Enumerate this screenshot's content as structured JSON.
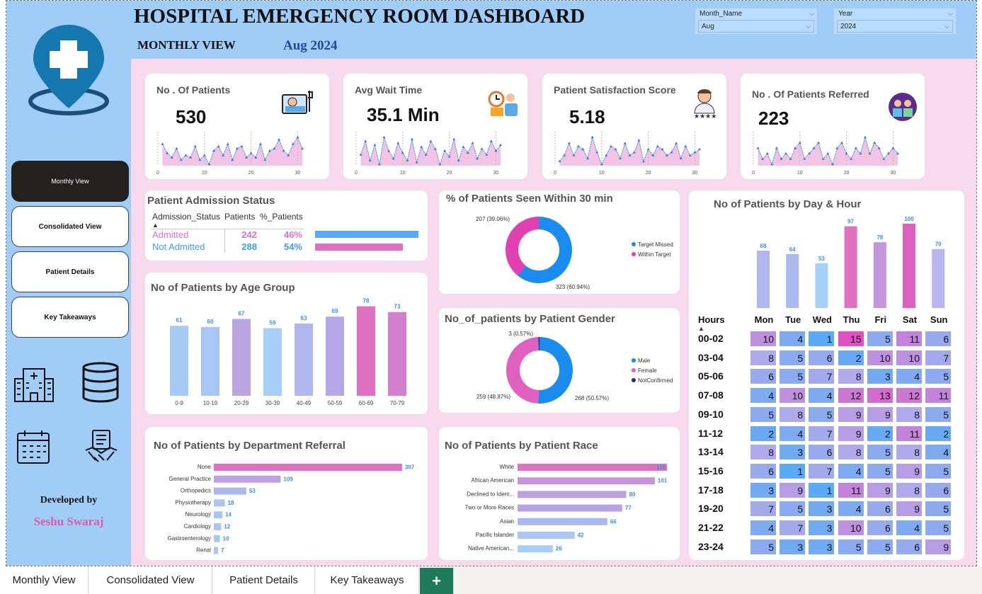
{
  "header": {
    "title": "HOSPITAL EMERGENCY ROOM DASHBOARD",
    "subtitle": "MONTHLY VIEW",
    "date": "Aug 2024"
  },
  "slicers": [
    {
      "label": "Month_Name",
      "value": "Aug"
    },
    {
      "label": "Year",
      "value": "2024"
    }
  ],
  "nav": [
    "Monthly View",
    "Consolidated View",
    "Patient Details",
    "Key Takeaways"
  ],
  "developer": {
    "label": "Developed by",
    "name": "Seshu Swaraj"
  },
  "kpis": [
    {
      "title": "No . Of Patients",
      "value": "530",
      "icon": "patient-bed-icon",
      "ticks": [
        "0",
        "10",
        "20",
        "30"
      ]
    },
    {
      "title": "Avg Wait Time",
      "value": "35.1 Min",
      "icon": "waiting-clock-icon",
      "ticks": [
        "0",
        "10",
        "20",
        "30"
      ]
    },
    {
      "title": "Patient Satisfaction Score",
      "value": "5.18",
      "icon": "doctor-rating-icon",
      "ticks": [
        "0",
        "10",
        "20",
        "30"
      ]
    },
    {
      "title": "No . Of Patients Referred",
      "value": "223",
      "icon": "doctors-referral-icon",
      "ticks": [
        "0",
        "10",
        "20",
        "30"
      ]
    }
  ],
  "admission": {
    "title": "Patient Admission Status",
    "headers": [
      "Admission_Status",
      "Patients",
      "%_Patients"
    ],
    "rows": [
      {
        "status": "Admitted",
        "patients": "242",
        "pct": "46%",
        "color": "#e070c0",
        "frac": 0.46
      },
      {
        "status": "Not Admitted",
        "patients": "288",
        "pct": "54%",
        "color": "#3a9cf5",
        "frac": 0.54
      }
    ]
  },
  "seen": {
    "title": "% of Patients Seen Within 30 min",
    "legend": [
      "Target Missed",
      "Within Target"
    ],
    "labels": [
      "207 (39.06%)",
      "323 (60.94%)"
    ]
  },
  "gender": {
    "title": "No_of_patients by Patient Gender",
    "legend": [
      "Male",
      "Female",
      "NotConfirmed"
    ],
    "labels": [
      "3 (0.57%)",
      "259 (48.87%)",
      "268 (50.57%)"
    ]
  },
  "dayhour": {
    "title": "No of Patients by Day & Hour",
    "hours_label": "Hours",
    "days": [
      "Mon",
      "Tue",
      "Wed",
      "Thu",
      "Fri",
      "Sat",
      "Sun"
    ],
    "hours": [
      "00-02",
      "03-04",
      "05-06",
      "07-08",
      "09-10",
      "11-12",
      "13-14",
      "15-16",
      "17-18",
      "19-20",
      "21-22",
      "23-24"
    ],
    "matrix": [
      [
        10,
        4,
        1,
        15,
        5,
        11,
        6
      ],
      [
        8,
        5,
        6,
        2,
        10,
        10,
        7
      ],
      [
        6,
        5,
        7,
        8,
        3,
        4,
        5
      ],
      [
        4,
        10,
        4,
        12,
        13,
        12,
        11
      ],
      [
        5,
        8,
        5,
        9,
        9,
        8,
        5
      ],
      [
        2,
        4,
        7,
        9,
        2,
        11,
        2
      ],
      [
        8,
        3,
        6,
        8,
        5,
        8,
        4
      ],
      [
        6,
        1,
        7,
        4,
        5,
        9,
        5
      ],
      [
        3,
        9,
        1,
        11,
        9,
        8,
        6
      ],
      [
        7,
        5,
        3,
        4,
        6,
        9,
        5
      ],
      [
        4,
        7,
        3,
        10,
        6,
        4,
        5
      ],
      [
        5,
        3,
        3,
        5,
        5,
        6,
        9
      ]
    ]
  },
  "chart_data": [
    {
      "type": "line",
      "title": "No . Of Patients",
      "x": [
        1,
        2,
        3,
        4,
        5,
        6,
        7,
        8,
        9,
        10,
        11,
        12,
        13,
        14,
        15,
        16,
        17,
        18,
        19,
        20,
        21,
        22,
        23,
        24,
        25,
        26,
        27,
        28,
        29,
        30,
        31
      ],
      "values": [
        19,
        15,
        13,
        17,
        12,
        14,
        13,
        18,
        12,
        14,
        10,
        16,
        18,
        14,
        19,
        12,
        17,
        18,
        13,
        15,
        13,
        19,
        12,
        16,
        17,
        21,
        16,
        14,
        19,
        22,
        17
      ],
      "xticks": [
        0,
        10,
        20,
        30
      ]
    },
    {
      "type": "line",
      "title": "Avg Wait Time",
      "x": [
        1,
        2,
        3,
        4,
        5,
        6,
        7,
        8,
        9,
        10,
        11,
        12,
        13,
        14,
        15,
        16,
        17,
        18,
        19,
        20,
        21,
        22,
        23,
        24,
        25,
        26,
        27,
        28,
        29,
        30,
        31
      ],
      "values": [
        33,
        40,
        30,
        38,
        28,
        42,
        35,
        31,
        39,
        34,
        30,
        41,
        29,
        37,
        33,
        40,
        36,
        28,
        35,
        32,
        41,
        30,
        37,
        34,
        39,
        31,
        36,
        33,
        40,
        35,
        38
      ],
      "xticks": [
        0,
        10,
        20,
        30
      ]
    },
    {
      "type": "line",
      "title": "Patient Satisfaction Score",
      "x": [
        1,
        2,
        3,
        4,
        5,
        6,
        7,
        8,
        9,
        10,
        11,
        12,
        13,
        14,
        15,
        16,
        17,
        18,
        19,
        20,
        21,
        22,
        23,
        24,
        25,
        26,
        27,
        28,
        29,
        30,
        31
      ],
      "values": [
        4.8,
        5.0,
        5.4,
        5.0,
        5.3,
        5.2,
        4.9,
        5.6,
        5.1,
        4.7,
        5.0,
        5.3,
        5.2,
        4.9,
        5.4,
        5.0,
        5.1,
        5.5,
        4.8,
        5.2,
        5.0,
        5.3,
        5.2,
        5.0,
        5.1,
        5.4,
        4.9,
        5.3,
        5.0,
        5.1,
        5.2
      ],
      "xticks": [
        0,
        10,
        20,
        30
      ]
    },
    {
      "type": "line",
      "title": "No . Of Patients Referred",
      "x": [
        1,
        2,
        3,
        4,
        5,
        6,
        7,
        8,
        9,
        10,
        11,
        12,
        13,
        14,
        15,
        16,
        17,
        18,
        19,
        20,
        21,
        22,
        23,
        24,
        25,
        26,
        27,
        28,
        29,
        30,
        31
      ],
      "values": [
        8,
        6,
        7,
        5,
        8,
        6,
        7,
        6,
        8,
        9,
        6,
        7,
        8,
        9,
        6,
        7,
        5,
        8,
        9,
        7,
        6,
        8,
        7,
        10,
        7,
        9,
        8,
        6,
        7,
        8,
        7
      ],
      "xticks": [
        0,
        10,
        20,
        30
      ]
    },
    {
      "type": "bar",
      "title": "No of Patients by Age Group",
      "categories": [
        "0-9",
        "10-19",
        "20-29",
        "30-39",
        "40-49",
        "50-59",
        "60-69",
        "70-79"
      ],
      "values": [
        61,
        60,
        67,
        59,
        63,
        69,
        78,
        73
      ],
      "colors": [
        "#a7caf5",
        "#a9c5f3",
        "#b9a4e0",
        "#a7d0f8",
        "#b0b6ee",
        "#b5a8e8",
        "#e070c0",
        "#d37fcd"
      ]
    },
    {
      "type": "bar",
      "title": "No of Patients by Department Referral",
      "orientation": "horizontal",
      "categories": [
        "None",
        "General Practice",
        "Orthopedics",
        "Physiotherapy",
        "Neurology",
        "Cardiology",
        "Gastroenterology",
        "Renal"
      ],
      "values": [
        307,
        109,
        53,
        18,
        14,
        12,
        10,
        7
      ],
      "colors": [
        "#e070c0",
        "#bda1e3",
        "#aab8f0",
        "#a9c5f3",
        "#a9c5f3",
        "#a9c5f3",
        "#a9c5f3",
        "#a9c5f3"
      ]
    },
    {
      "type": "bar",
      "title": "No of Patients by Patient Race",
      "orientation": "horizontal",
      "categories": [
        "White",
        "African American",
        "Declined to Ident...",
        "Two or More Races",
        "Asian",
        "Pacific Islander",
        "Native American..."
      ],
      "values": [
        110,
        101,
        80,
        77,
        66,
        42,
        26
      ],
      "colors": [
        "#e070c0",
        "#c494dd",
        "#bda1e3",
        "#b8a2e4",
        "#aab8f0",
        "#a9c5f3",
        "#a7d0f8"
      ]
    },
    {
      "type": "pie",
      "title": "% of Patients Seen Within 30 min",
      "categories": [
        "Target Missed",
        "Within Target"
      ],
      "values": [
        323,
        207
      ],
      "colors": [
        "#1a8cf0",
        "#e040b0"
      ]
    },
    {
      "type": "pie",
      "title": "No_of_patients by Patient Gender",
      "categories": [
        "Male",
        "Female",
        "NotConfirmed"
      ],
      "values": [
        268,
        259,
        3
      ],
      "colors": [
        "#1a8cf0",
        "#e060c0",
        "#1f2a8a"
      ]
    },
    {
      "type": "bar",
      "title": "No of Patients by Day & Hour",
      "categories": [
        "Mon",
        "Tue",
        "Wed",
        "Thu",
        "Fri",
        "Sat",
        "Sun"
      ],
      "values": [
        68,
        64,
        53,
        97,
        78,
        100,
        70
      ],
      "colors": [
        "#b0b6ee",
        "#aab8f0",
        "#a7d0f8",
        "#e070c0",
        "#c494dd",
        "#e060c0",
        "#b8b6ec"
      ]
    }
  ],
  "tabs": [
    "Monthly View",
    "Consolidated View",
    "Patient Details",
    "Key Takeaways"
  ],
  "add_tab": "+"
}
